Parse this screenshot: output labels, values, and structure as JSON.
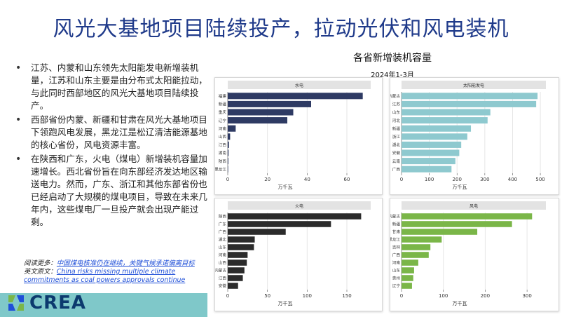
{
  "slide": {
    "title": "风光大基地项目陆续投产，拉动光伏和风电装机",
    "bullets": [
      "江苏、内蒙和山东领先太阳能发电新增装机量，江苏和山东主要是由分布式太阳能拉动，与此同时西部地区的风光大基地项目陆续投产。",
      "西部省份内蒙、新疆和甘肃在风光大基地项目下领跑风电发展，黑龙江是松辽清洁能源基地的核心省份，风电资源丰富。",
      "在陕西和广东，火电（煤电）新增装机容量加速增长。西北省份旨在向东部经济发达地区输送电力。然而，广东、浙江和其他东部省份也已经启动了大规模的煤电项目，导致在未来几年内，这些煤电厂一旦投产就会出现产能过剩。"
    ],
    "read_more_label": "阅读更多：",
    "read_more_link": "中国煤电核准仍在继续，关键气候承诺偏离目标",
    "english_label": "英文原文：",
    "english_link": "China risks missing multiple climate commitments as coal powers approvals continue",
    "logo_text": "CREA",
    "colors": {
      "title": "#1f3a8a",
      "hydro": "#2e3a63",
      "solar": "#8ec9cf",
      "thermal": "#2b2b2b",
      "wind": "#7ab648",
      "band": "#7fc8c9"
    }
  },
  "chart_data": {
    "title": "各省新增装机容量",
    "subtitle": "2024年1-3月",
    "type": "bar",
    "orientation": "horizontal",
    "panels": [
      {
        "name": "水电",
        "color": "#2e3a63",
        "xlabel": "万千瓦",
        "xlim": [
          0,
          72
        ],
        "ticks": [
          0,
          20,
          40,
          60
        ],
        "tick_labels": [
          "0",
          "20",
          "40",
          "60"
        ],
        "categories": [
          "福建",
          "新疆",
          "重庆",
          "辽宁",
          "河南",
          "山西",
          "江西",
          "湖南",
          "陕西",
          "黑龙江"
        ],
        "values": [
          68,
          42,
          33,
          30,
          4,
          1.2,
          0.6,
          0.4,
          0.3,
          0.2
        ]
      },
      {
        "name": "太阳能发电",
        "color": "#8ec9cf",
        "xlabel": "万千瓦",
        "xlim": [
          0,
          520
        ],
        "ticks": [
          0,
          100,
          200,
          300,
          400,
          500
        ],
        "tick_labels": [
          "0",
          "100",
          "200",
          "300",
          "400",
          "500"
        ],
        "categories": [
          "内蒙古",
          "江苏",
          "山东",
          "河北",
          "新疆",
          "浙江",
          "湖北",
          "安徽",
          "云南",
          "广西"
        ],
        "values": [
          490,
          485,
          320,
          310,
          250,
          237,
          215,
          208,
          194,
          180
        ]
      },
      {
        "name": "火电",
        "color": "#2b2b2b",
        "xlabel": "万千瓦",
        "xlim": [
          0,
          180
        ],
        "ticks": [
          0,
          50,
          100,
          150
        ],
        "tick_labels": [
          "0",
          "50",
          "100",
          "150"
        ],
        "categories": [
          "陕西",
          "广东",
          "广西",
          "湖北",
          "山东",
          "河南",
          "山西",
          "内蒙古",
          "江西",
          "安徽"
        ],
        "values": [
          168,
          130,
          73,
          34,
          33,
          25,
          24,
          21,
          19,
          13
        ]
      },
      {
        "name": "风电",
        "color": "#7ab648",
        "xlabel": "万千瓦",
        "xlim": [
          0,
          345
        ],
        "ticks": [
          0,
          100,
          200,
          300
        ],
        "tick_labels": [
          "0",
          "100",
          "200",
          "300"
        ],
        "categories": [
          "内蒙古",
          "新疆",
          "甘肃",
          "黑龙江",
          "吉林",
          "广西",
          "河南",
          "山东",
          "贵州",
          "辽宁"
        ],
        "values": [
          312,
          264,
          181,
          96,
          69,
          65,
          40,
          30,
          28,
          25
        ]
      }
    ]
  }
}
